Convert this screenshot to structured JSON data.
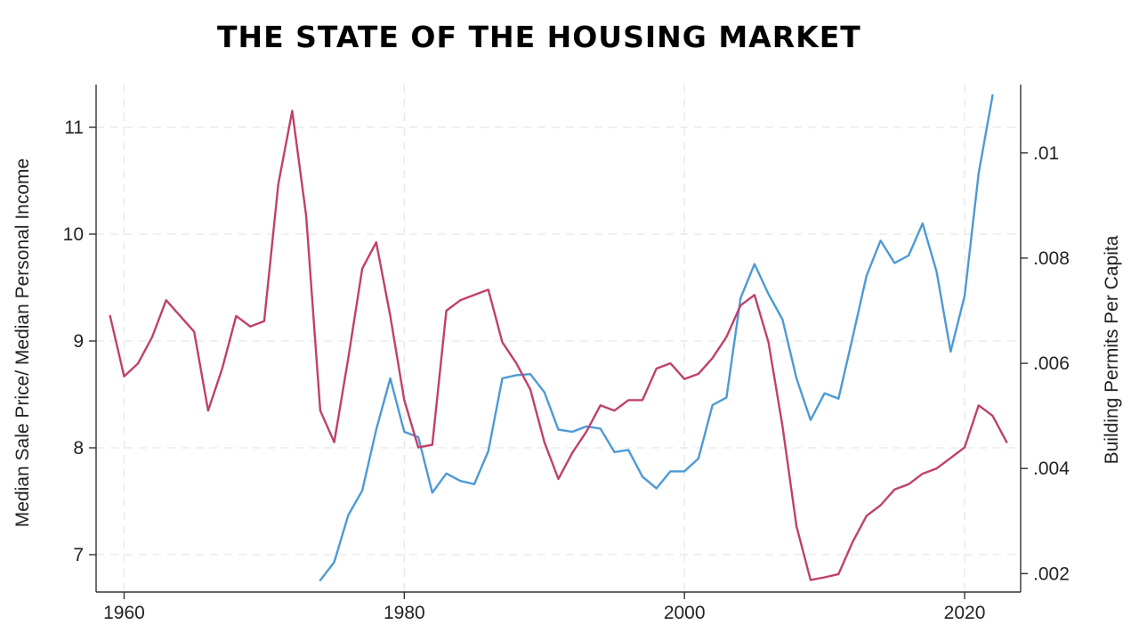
{
  "page": {
    "title": "THE STATE OF THE HOUSING MARKET"
  },
  "chart_data": {
    "type": "line",
    "title": "THE STATE OF THE HOUSING MARKET",
    "xlabel": "",
    "xlim": [
      1958,
      2024
    ],
    "x_ticks": [
      1960,
      1980,
      2000,
      2020
    ],
    "y_left": {
      "label": "Median Sale Price/ Median Personal Income",
      "lim": [
        6.65,
        11.4
      ],
      "ticks": [
        7,
        8,
        9,
        10,
        11
      ],
      "tick_labels": [
        "7",
        "8",
        "9",
        "10",
        "11"
      ]
    },
    "y_right": {
      "label": "Building Permits Per Capita",
      "lim": [
        0.00165,
        0.0113
      ],
      "ticks": [
        0.002,
        0.004,
        0.006,
        0.008,
        0.01
      ],
      "tick_labels": [
        ".002",
        ".004",
        ".006",
        ".008",
        ".01"
      ]
    },
    "grid": true,
    "series": [
      {
        "axis": "left",
        "color": "#4c9ad6",
        "x": [
          1974,
          1975,
          1976,
          1977,
          1978,
          1979,
          1980,
          1981,
          1982,
          1983,
          1984,
          1985,
          1986,
          1987,
          1988,
          1989,
          1990,
          1991,
          1992,
          1993,
          1994,
          1995,
          1996,
          1997,
          1998,
          1999,
          2000,
          2001,
          2002,
          2003,
          2004,
          2005,
          2006,
          2007,
          2008,
          2009,
          2010,
          2011,
          2012,
          2013,
          2014,
          2015,
          2016,
          2017,
          2018,
          2019,
          2020,
          2021,
          2022
        ],
        "values": [
          6.76,
          6.93,
          7.37,
          7.6,
          8.17,
          8.65,
          8.15,
          8.1,
          7.58,
          7.76,
          7.69,
          7.66,
          7.97,
          8.65,
          8.68,
          8.69,
          8.52,
          8.17,
          8.15,
          8.2,
          8.18,
          7.96,
          7.98,
          7.73,
          7.62,
          7.78,
          7.78,
          7.9,
          8.4,
          8.47,
          9.4,
          9.72,
          9.44,
          9.2,
          8.65,
          8.26,
          8.51,
          8.46,
          9.03,
          9.61,
          9.94,
          9.73,
          9.8,
          10.1,
          9.65,
          8.9,
          9.42,
          10.57,
          11.3
        ]
      },
      {
        "axis": "right",
        "color": "#c0406c",
        "x": [
          1959,
          1960,
          1961,
          1962,
          1963,
          1964,
          1965,
          1966,
          1967,
          1968,
          1969,
          1970,
          1971,
          1972,
          1973,
          1974,
          1975,
          1976,
          1977,
          1978,
          1979,
          1980,
          1981,
          1982,
          1983,
          1984,
          1985,
          1986,
          1987,
          1988,
          1989,
          1990,
          1991,
          1992,
          1993,
          1994,
          1995,
          1996,
          1997,
          1998,
          1999,
          2000,
          2001,
          2002,
          2003,
          2004,
          2005,
          2006,
          2007,
          2008,
          2009,
          2010,
          2011,
          2012,
          2013,
          2014,
          2015,
          2016,
          2017,
          2018,
          2019,
          2020,
          2021,
          2022,
          2023
        ],
        "values": [
          0.0069,
          0.00575,
          0.006,
          0.0065,
          0.0072,
          0.0069,
          0.0066,
          0.0051,
          0.0059,
          0.0069,
          0.0067,
          0.0068,
          0.0094,
          0.0108,
          0.0088,
          0.0051,
          0.0045,
          0.0061,
          0.0078,
          0.0083,
          0.0069,
          0.0053,
          0.0044,
          0.00445,
          0.007,
          0.0072,
          0.0073,
          0.0074,
          0.0064,
          0.006,
          0.0055,
          0.0045,
          0.0038,
          0.0043,
          0.0047,
          0.0052,
          0.0051,
          0.0053,
          0.0053,
          0.0059,
          0.006,
          0.0057,
          0.0058,
          0.0061,
          0.0065,
          0.0071,
          0.0073,
          0.0064,
          0.0048,
          0.0029,
          0.00188,
          0.00193,
          0.00199,
          0.0026,
          0.0031,
          0.0033,
          0.0036,
          0.0037,
          0.0039,
          0.004,
          0.0042,
          0.0044,
          0.0052,
          0.005,
          0.0045
        ]
      }
    ]
  }
}
